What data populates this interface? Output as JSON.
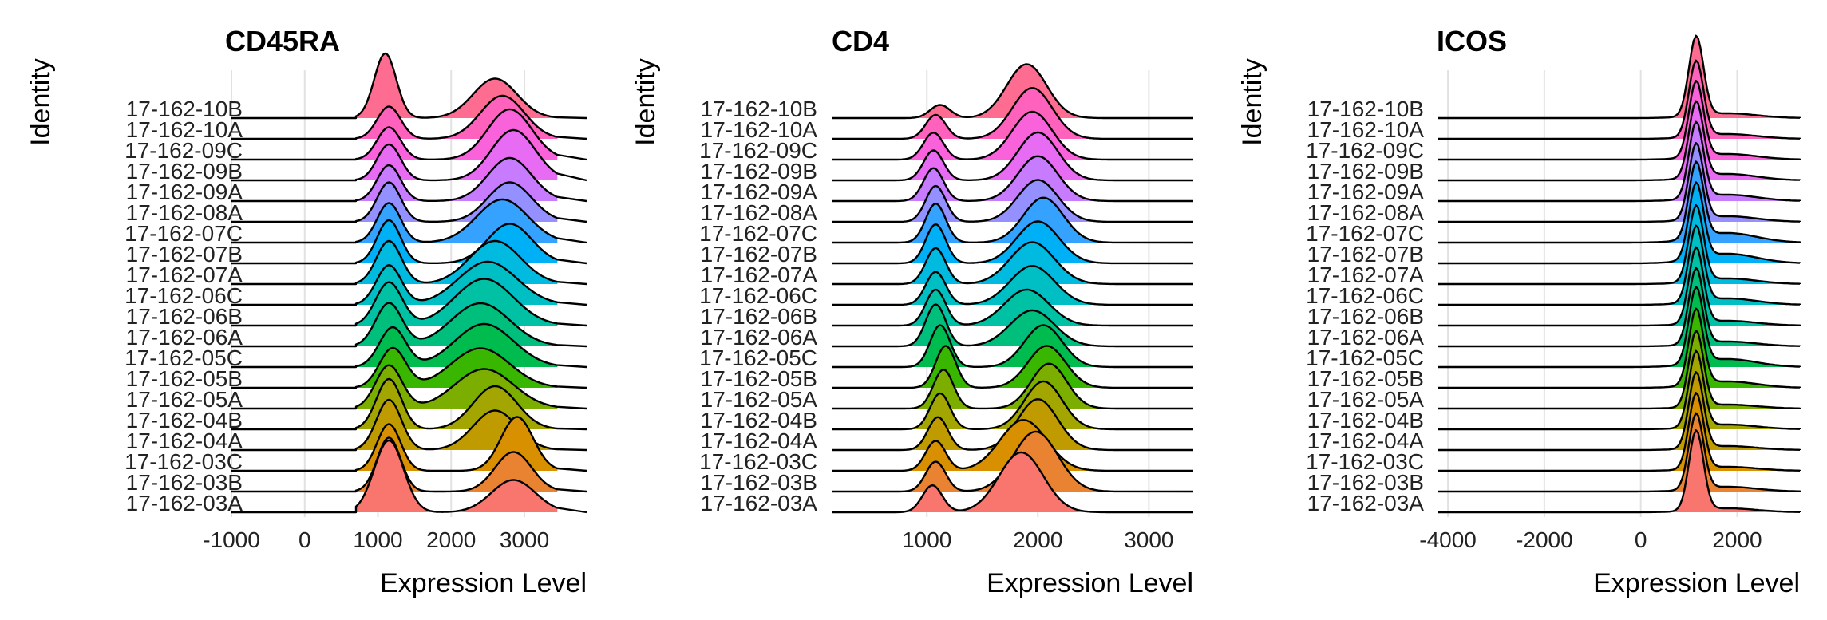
{
  "chart_data": [
    {
      "type": "ridgeline",
      "title": "CD45RA",
      "xlabel": "Expression Level",
      "ylabel": "Identity",
      "xticks": [
        -1000,
        0,
        1000,
        2000,
        3000
      ],
      "xtick_labels": [
        "-1000",
        "0",
        "1000",
        "2000",
        "3000"
      ],
      "xlim": [
        -1000,
        3850
      ],
      "data_range": [
        700,
        3450
      ],
      "grid": true,
      "series": [
        {
          "name": "17-162-03A",
          "peaks": [
            [
              1150,
              200,
              1.0
            ],
            [
              2850,
              300,
              0.45
            ]
          ]
        },
        {
          "name": "17-162-03B",
          "peaks": [
            [
              1150,
              160,
              0.75
            ],
            [
              2850,
              250,
              0.55
            ]
          ]
        },
        {
          "name": "17-162-03C",
          "peaks": [
            [
              1150,
              160,
              0.65
            ],
            [
              2900,
              220,
              0.75
            ]
          ]
        },
        {
          "name": "17-162-04A",
          "peaks": [
            [
              1150,
              170,
              0.7
            ],
            [
              2600,
              300,
              0.55
            ]
          ]
        },
        {
          "name": "17-162-04B",
          "peaks": [
            [
              1150,
              170,
              0.7
            ],
            [
              2600,
              300,
              0.6
            ]
          ]
        },
        {
          "name": "17-162-05A",
          "peaks": [
            [
              1150,
              180,
              0.6
            ],
            [
              2450,
              400,
              0.55
            ]
          ]
        },
        {
          "name": "17-162-05B",
          "peaks": [
            [
              1200,
              180,
              0.55
            ],
            [
              2400,
              400,
              0.55
            ]
          ]
        },
        {
          "name": "17-162-05C",
          "peaks": [
            [
              1200,
              180,
              0.55
            ],
            [
              2450,
              400,
              0.6
            ]
          ]
        },
        {
          "name": "17-162-06A",
          "peaks": [
            [
              1150,
              180,
              0.6
            ],
            [
              2400,
              400,
              0.6
            ]
          ]
        },
        {
          "name": "17-162-06B",
          "peaks": [
            [
              1150,
              180,
              0.6
            ],
            [
              2450,
              400,
              0.65
            ]
          ]
        },
        {
          "name": "17-162-06C",
          "peaks": [
            [
              1150,
              170,
              0.55
            ],
            [
              2500,
              400,
              0.6
            ]
          ]
        },
        {
          "name": "17-162-07A",
          "peaks": [
            [
              1150,
              170,
              0.6
            ],
            [
              2600,
              350,
              0.6
            ]
          ]
        },
        {
          "name": "17-162-07B",
          "peaks": [
            [
              1150,
              160,
              0.6
            ],
            [
              2800,
              300,
              0.55
            ]
          ]
        },
        {
          "name": "17-162-07C",
          "peaks": [
            [
              1150,
              160,
              0.55
            ],
            [
              2700,
              350,
              0.6
            ]
          ]
        },
        {
          "name": "17-162-08A",
          "peaks": [
            [
              1150,
              160,
              0.55
            ],
            [
              2800,
              300,
              0.55
            ]
          ]
        },
        {
          "name": "17-162-09A",
          "peaks": [
            [
              1150,
              160,
              0.5
            ],
            [
              2800,
              300,
              0.6
            ]
          ]
        },
        {
          "name": "17-162-09B",
          "peaks": [
            [
              1150,
              160,
              0.5
            ],
            [
              2850,
              300,
              0.7
            ]
          ]
        },
        {
          "name": "17-162-09C",
          "peaks": [
            [
              1150,
              160,
              0.45
            ],
            [
              2800,
              300,
              0.7
            ]
          ]
        },
        {
          "name": "17-162-10A",
          "peaks": [
            [
              1150,
              160,
              0.45
            ],
            [
              2700,
              300,
              0.6
            ]
          ]
        },
        {
          "name": "17-162-10B",
          "peaks": [
            [
              1100,
              150,
              0.9
            ],
            [
              2600,
              300,
              0.55
            ]
          ]
        }
      ]
    },
    {
      "type": "ridgeline",
      "title": "CD4",
      "xlabel": "Expression Level",
      "ylabel": "Identity",
      "xticks": [
        1000,
        2000,
        3000
      ],
      "xtick_labels": [
        "1000",
        "2000",
        "3000"
      ],
      "xlim": [
        150,
        3400
      ],
      "data_range": [
        500,
        2700
      ],
      "grid": true,
      "series": [
        {
          "name": "17-162-03A",
          "peaks": [
            [
              1050,
              90,
              0.45
            ],
            [
              1850,
              200,
              1.0
            ]
          ]
        },
        {
          "name": "17-162-03B",
          "peaks": [
            [
              1080,
              90,
              0.5
            ],
            [
              1980,
              200,
              1.0
            ]
          ]
        },
        {
          "name": "17-162-03C",
          "peaks": [
            [
              1080,
              90,
              0.5
            ],
            [
              1870,
              210,
              0.85
            ]
          ]
        },
        {
          "name": "17-162-04A",
          "peaks": [
            [
              1100,
              90,
              0.55
            ],
            [
              2000,
              180,
              0.85
            ]
          ]
        },
        {
          "name": "17-162-04B",
          "peaks": [
            [
              1120,
              90,
              0.6
            ],
            [
              2050,
              170,
              0.8
            ]
          ]
        },
        {
          "name": "17-162-05A",
          "peaks": [
            [
              1150,
              90,
              0.65
            ],
            [
              2100,
              160,
              0.75
            ]
          ]
        },
        {
          "name": "17-162-05B",
          "peaks": [
            [
              1170,
              90,
              0.7
            ],
            [
              2080,
              170,
              0.7
            ]
          ]
        },
        {
          "name": "17-162-05C",
          "peaks": [
            [
              1120,
              90,
              0.7
            ],
            [
              2050,
              170,
              0.7
            ]
          ]
        },
        {
          "name": "17-162-06A",
          "peaks": [
            [
              1080,
              90,
              0.7
            ],
            [
              1950,
              200,
              0.6
            ]
          ]
        },
        {
          "name": "17-162-06B",
          "peaks": [
            [
              1080,
              90,
              0.6
            ],
            [
              1900,
              200,
              0.6
            ]
          ]
        },
        {
          "name": "17-162-06C",
          "peaks": [
            [
              1080,
              90,
              0.55
            ],
            [
              1950,
              200,
              0.65
            ]
          ]
        },
        {
          "name": "17-162-07A",
          "peaks": [
            [
              1080,
              90,
              0.6
            ],
            [
              1950,
              200,
              0.7
            ]
          ]
        },
        {
          "name": "17-162-07B",
          "peaks": [
            [
              1080,
              90,
              0.65
            ],
            [
              2000,
              190,
              0.7
            ]
          ]
        },
        {
          "name": "17-162-07C",
          "peaks": [
            [
              1080,
              90,
              0.65
            ],
            [
              2050,
              180,
              0.75
            ]
          ]
        },
        {
          "name": "17-162-08A",
          "peaks": [
            [
              1080,
              90,
              0.6
            ],
            [
              2000,
              180,
              0.7
            ]
          ]
        },
        {
          "name": "17-162-09A",
          "peaks": [
            [
              1060,
              90,
              0.55
            ],
            [
              2000,
              180,
              0.75
            ]
          ]
        },
        {
          "name": "17-162-09B",
          "peaks": [
            [
              1060,
              90,
              0.5
            ],
            [
              2000,
              180,
              0.8
            ]
          ]
        },
        {
          "name": "17-162-09C",
          "peaks": [
            [
              1060,
              90,
              0.45
            ],
            [
              1950,
              180,
              0.8
            ]
          ]
        },
        {
          "name": "17-162-10A",
          "peaks": [
            [
              1080,
              90,
              0.4
            ],
            [
              1950,
              180,
              0.85
            ]
          ]
        },
        {
          "name": "17-162-10B",
          "peaks": [
            [
              1120,
              90,
              0.22
            ],
            [
              1900,
              180,
              0.9
            ]
          ]
        }
      ]
    },
    {
      "type": "ridgeline",
      "title": "ICOS",
      "xlabel": "Expression Level",
      "ylabel": "Identity",
      "xticks": [
        -4000,
        -2000,
        0,
        2000
      ],
      "xtick_labels": [
        "-4000",
        "-2000",
        "0",
        "2000"
      ],
      "xlim": [
        -4200,
        3300
      ],
      "data_range": [
        -4200,
        3300
      ],
      "grid": true,
      "series": [
        {
          "name": "17-162-03A",
          "peaks": [
            [
              1150,
              150,
              1.0
            ],
            [
              1800,
              600,
              0.05
            ]
          ]
        },
        {
          "name": "17-162-03B",
          "peaks": [
            [
              1150,
              150,
              0.95
            ],
            [
              1800,
              600,
              0.06
            ]
          ]
        },
        {
          "name": "17-162-03C",
          "peaks": [
            [
              1150,
              150,
              0.95
            ],
            [
              1800,
              600,
              0.05
            ]
          ]
        },
        {
          "name": "17-162-04A",
          "peaks": [
            [
              1150,
              150,
              0.95
            ],
            [
              1800,
              600,
              0.05
            ]
          ]
        },
        {
          "name": "17-162-04B",
          "peaks": [
            [
              1150,
              150,
              0.95
            ],
            [
              1800,
              600,
              0.06
            ]
          ]
        },
        {
          "name": "17-162-05A",
          "peaks": [
            [
              1150,
              150,
              0.95
            ],
            [
              1800,
              600,
              0.05
            ]
          ]
        },
        {
          "name": "17-162-05B",
          "peaks": [
            [
              1150,
              150,
              0.95
            ],
            [
              1800,
              600,
              0.08
            ]
          ]
        },
        {
          "name": "17-162-05C",
          "peaks": [
            [
              1150,
              150,
              0.95
            ],
            [
              1800,
              600,
              0.1
            ]
          ]
        },
        {
          "name": "17-162-06A",
          "peaks": [
            [
              1150,
              150,
              0.95
            ],
            [
              1800,
              600,
              0.06
            ]
          ]
        },
        {
          "name": "17-162-06B",
          "peaks": [
            [
              1150,
              150,
              0.95
            ],
            [
              1800,
              600,
              0.06
            ]
          ]
        },
        {
          "name": "17-162-06C",
          "peaks": [
            [
              1150,
              150,
              0.95
            ],
            [
              1800,
              600,
              0.08
            ]
          ]
        },
        {
          "name": "17-162-07A",
          "peaks": [
            [
              1150,
              150,
              0.95
            ],
            [
              1800,
              600,
              0.07
            ]
          ]
        },
        {
          "name": "17-162-07B",
          "peaks": [
            [
              1150,
              150,
              0.95
            ],
            [
              1800,
              600,
              0.12
            ]
          ]
        },
        {
          "name": "17-162-07C",
          "peaks": [
            [
              1150,
              150,
              0.95
            ],
            [
              1800,
              600,
              0.12
            ]
          ]
        },
        {
          "name": "17-162-08A",
          "peaks": [
            [
              1150,
              150,
              0.95
            ],
            [
              1800,
              600,
              0.07
            ]
          ]
        },
        {
          "name": "17-162-09A",
          "peaks": [
            [
              1150,
              150,
              0.95
            ],
            [
              1800,
              600,
              0.08
            ]
          ]
        },
        {
          "name": "17-162-09B",
          "peaks": [
            [
              1150,
              150,
              0.95
            ],
            [
              1800,
              600,
              0.08
            ]
          ]
        },
        {
          "name": "17-162-09C",
          "peaks": [
            [
              1150,
              150,
              0.95
            ],
            [
              1800,
              600,
              0.07
            ]
          ]
        },
        {
          "name": "17-162-10A",
          "peaks": [
            [
              1150,
              150,
              0.95
            ],
            [
              1800,
              600,
              0.06
            ]
          ]
        },
        {
          "name": "17-162-10B",
          "peaks": [
            [
              1150,
              150,
              1.0
            ],
            [
              1800,
              600,
              0.06
            ]
          ]
        }
      ]
    }
  ],
  "colors": [
    "#F8766D",
    "#EA8331",
    "#D89000",
    "#C09B00",
    "#A3A500",
    "#7CAE00",
    "#39B600",
    "#00BB4E",
    "#00BF7D",
    "#00C1A3",
    "#00BFC4",
    "#00BAE0",
    "#00B0F6",
    "#35A2FF",
    "#9590FF",
    "#C77CFF",
    "#E76BF3",
    "#FA62DB",
    "#FF62BC",
    "#FF6C91"
  ]
}
